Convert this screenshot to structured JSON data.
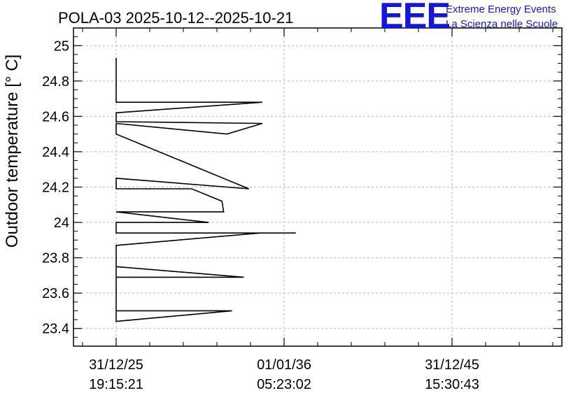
{
  "chart_data": {
    "type": "line",
    "title": "POLA-03 2025-10-12--2025-10-21",
    "ylabel": "Outdoor temperature [° C]",
    "xlabel": "",
    "ylim": [
      23.3,
      25.1
    ],
    "yticks": [
      23.4,
      23.6,
      23.8,
      24,
      24.2,
      24.4,
      24.6,
      24.8,
      25
    ],
    "ytick_labels": [
      "23.4",
      "23.6",
      "23.8",
      "24",
      "24.2",
      "24.4",
      "24.6",
      "24.8",
      "25"
    ],
    "xtick_labels": [
      {
        "date": "31/12/25",
        "time": "19:15:21"
      },
      {
        "date": "01/01/36",
        "time": "05:23:02"
      },
      {
        "date": "31/12/45",
        "time": "15:30:43"
      }
    ],
    "grid": true,
    "series": [
      {
        "x": [
          0,
          0,
          0,
          0.87,
          0,
          0,
          0.87,
          0.66,
          0,
          0,
          0.79,
          0,
          0,
          0.45,
          0.63,
          0.64,
          0,
          0,
          0.55,
          0,
          0,
          1.07,
          0.86,
          0,
          0,
          0.76,
          0,
          0,
          0,
          0.69,
          0,
          0
        ],
        "y": [
          24.93,
          24.69,
          24.68,
          24.68,
          24.62,
          24.57,
          24.56,
          24.5,
          24.56,
          24.5,
          24.19,
          24.25,
          24.19,
          24.19,
          24.12,
          24.06,
          24.06,
          24.06,
          24.0,
          24.0,
          23.94,
          23.94,
          23.94,
          23.87,
          23.69,
          23.69,
          23.75,
          23.62,
          23.44,
          23.5,
          23.5,
          23.44
        ]
      }
    ]
  },
  "logo": {
    "text": "EEE",
    "line1": "Extreme Energy Events",
    "line2": "La Scienza nelle Scuole",
    "color": "#1515e0"
  }
}
